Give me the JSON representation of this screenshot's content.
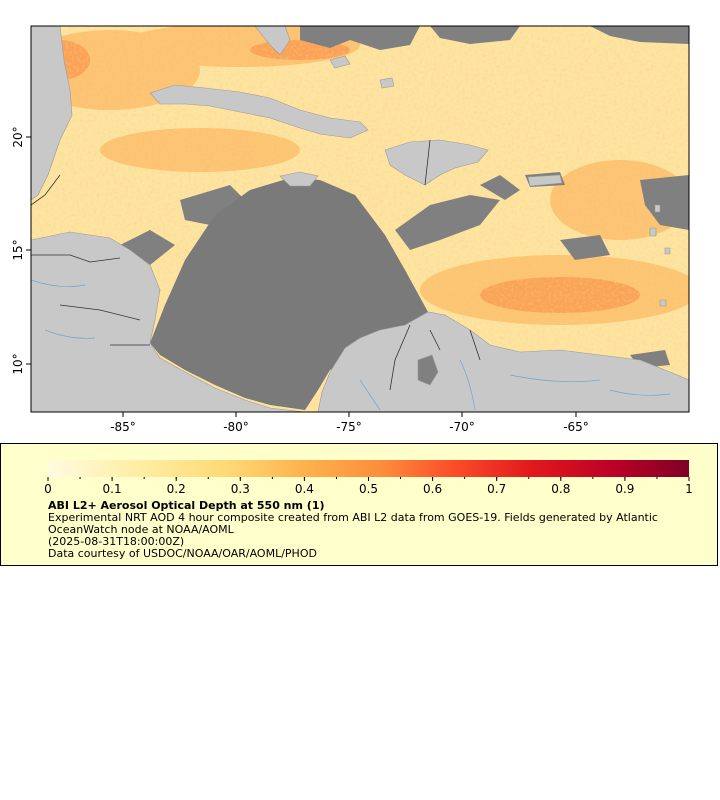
{
  "map": {
    "x_ticks": [
      "-85°",
      "-80°",
      "-75°",
      "-70°",
      "-65°"
    ],
    "y_ticks": [
      "10°",
      "15°",
      "20°"
    ],
    "lon_range": [
      -88.8,
      -59.7
    ],
    "lat_range": [
      8.0,
      25.4
    ]
  },
  "legend": {
    "colorbar_ticks": [
      "0",
      "0.1",
      "0.2",
      "0.3",
      "0.4",
      "0.5",
      "0.6",
      "0.7",
      "0.8",
      "0.9",
      "1"
    ],
    "colorbar_range": [
      0,
      1
    ],
    "colors": [
      "#fffbe0",
      "#ffeda0",
      "#fed976",
      "#feb24c",
      "#fd8d3c",
      "#fc4e2a",
      "#e31a1c",
      "#bd0026",
      "#800026"
    ],
    "title": "ABI L2+ Aerosol Optical Depth at 550 nm (1)",
    "description": "Experimental NRT AOD 4 hour composite created from ABI L2 data from GOES-19. Fields generated by Atlantic OceanWatch node at NOAA/AOML",
    "date": "(2025-08-31T18:00:00Z)",
    "credit": "Data courtesy of USDOC/NOAA/OAR/AOML/PHOD"
  },
  "colors": {
    "land": "#c8c8c8",
    "no_data": "#808080",
    "rivers": "#6a9fd8",
    "ocean_low_aod": "#fde6a4",
    "ocean_mid_aod": "#fdb35e"
  }
}
